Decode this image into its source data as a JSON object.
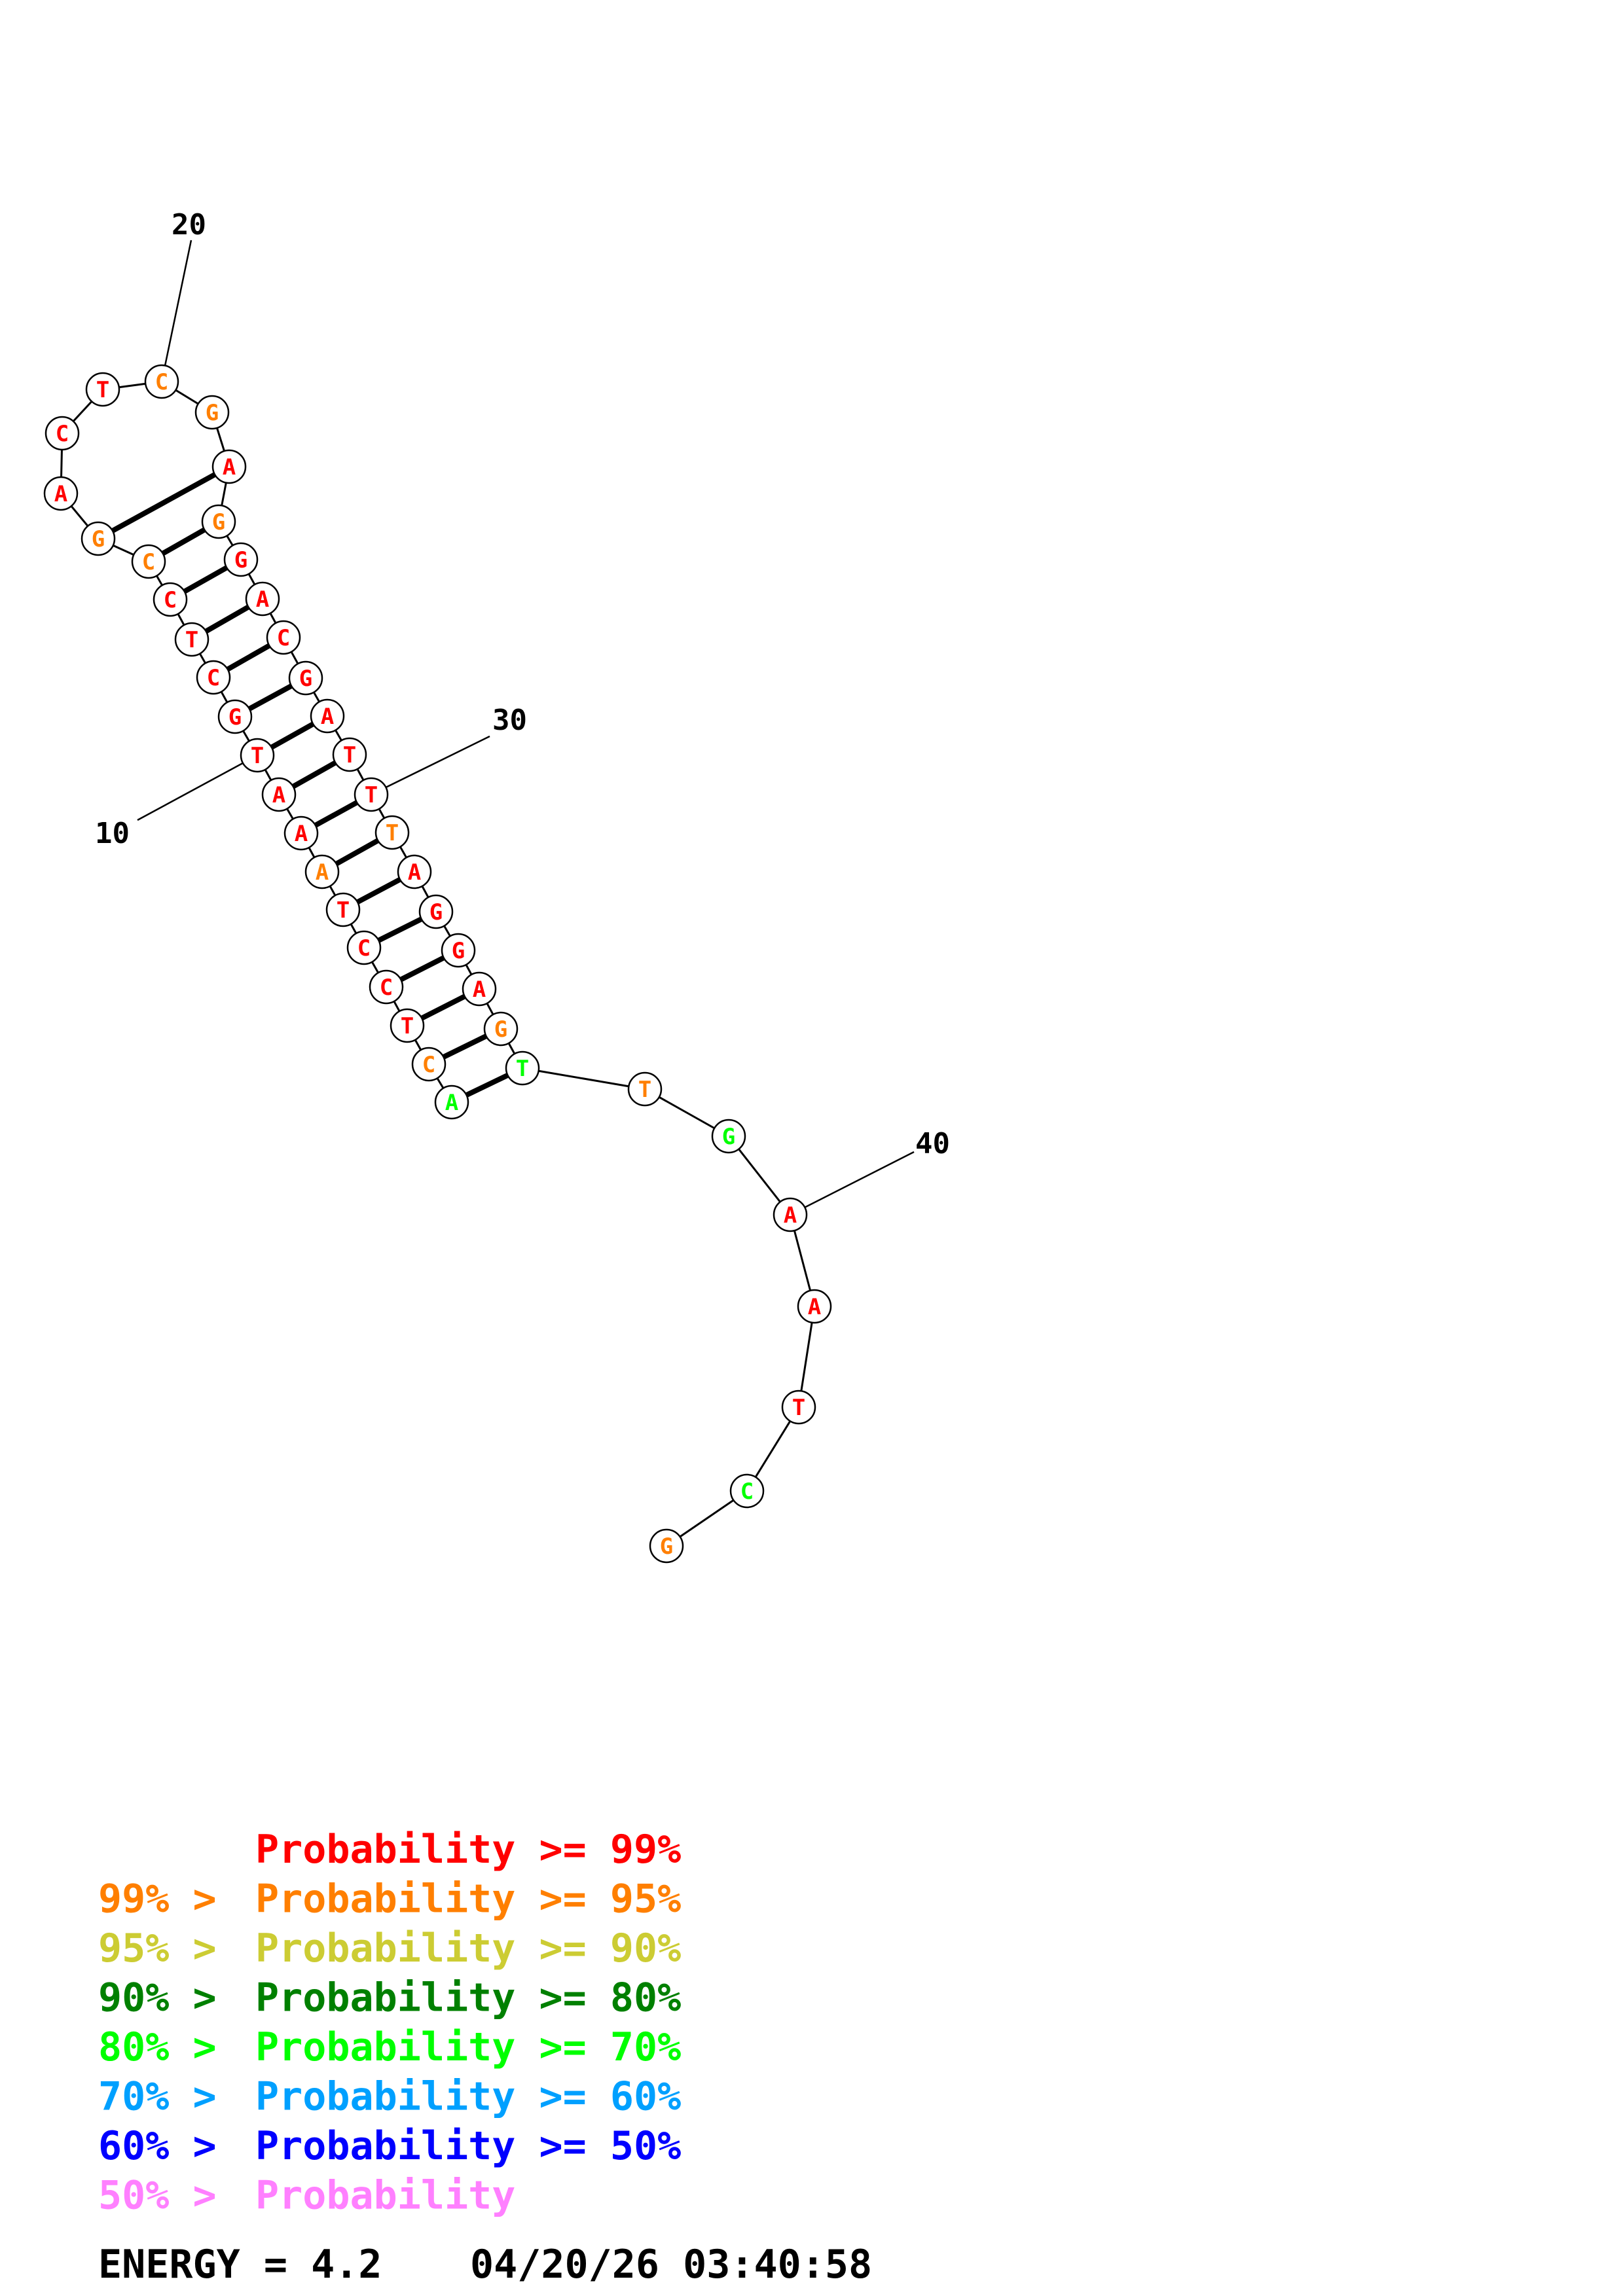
{
  "colors": {
    "p99": "#ff0000",
    "p95": "#ff7f00",
    "p90": "#cccc33",
    "p80": "#008000",
    "p70": "#00ff00",
    "p60": "#00a0ff",
    "p50": "#0000ff",
    "low": "#ff80ff"
  },
  "structure": {
    "sequence": [
      "A",
      "C",
      "T",
      "C",
      "C",
      "T",
      "A",
      "A",
      "A",
      "T",
      "G",
      "C",
      "T",
      "C",
      "C",
      "G",
      "A",
      "C",
      "T",
      "C",
      "G",
      "A",
      "G",
      "G",
      "A",
      "C",
      "G",
      "A",
      "T",
      "T",
      "T",
      "A",
      "G",
      "G",
      "A",
      "G",
      "T",
      "T",
      "G",
      "A",
      "A",
      "T",
      "C",
      "G"
    ],
    "prob": [
      "p70",
      "p95",
      "p99",
      "p99",
      "p99",
      "p99",
      "p95",
      "p99",
      "p99",
      "p99",
      "p99",
      "p99",
      "p99",
      "p99",
      "p95",
      "p95",
      "p99",
      "p99",
      "p99",
      "p95",
      "p95",
      "p99",
      "p95",
      "p99",
      "p99",
      "p99",
      "p99",
      "p99",
      "p99",
      "p99",
      "p95",
      "p99",
      "p99",
      "p99",
      "p99",
      "p95",
      "p70",
      "p95",
      "p70",
      "p99",
      "p99",
      "p99",
      "p70",
      "p95"
    ],
    "pairs": [
      [
        1,
        37
      ],
      [
        2,
        36
      ],
      [
        3,
        35
      ],
      [
        4,
        34
      ],
      [
        5,
        33
      ],
      [
        6,
        32
      ],
      [
        7,
        31
      ],
      [
        8,
        30
      ],
      [
        9,
        29
      ],
      [
        10,
        28
      ],
      [
        11,
        27
      ],
      [
        12,
        26
      ],
      [
        13,
        25
      ],
      [
        14,
        24
      ],
      [
        15,
        23
      ],
      [
        16,
        22
      ]
    ],
    "index_labels": [
      "10",
      "20",
      "30",
      "40"
    ]
  },
  "legend": [
    {
      "range": "",
      "label": "Probability >= 99%",
      "color": "p99"
    },
    {
      "range": "99% > ",
      "label": "Probability >= 95%",
      "color": "p95"
    },
    {
      "range": "95% > ",
      "label": "Probability >= 90%",
      "color": "p90"
    },
    {
      "range": "90% > ",
      "label": "Probability >= 80%",
      "color": "p80"
    },
    {
      "range": "80% > ",
      "label": "Probability >= 70%",
      "color": "p70"
    },
    {
      "range": "70% > ",
      "label": "Probability >= 60%",
      "color": "p60"
    },
    {
      "range": "60% > ",
      "label": "Probability >= 50%",
      "color": "p50"
    },
    {
      "range": "50% > ",
      "label": "Probability",
      "color": "low"
    }
  ],
  "footer": {
    "energy": "ENERGY = 4.2",
    "timestamp": "04/20/26 03:40:58"
  }
}
